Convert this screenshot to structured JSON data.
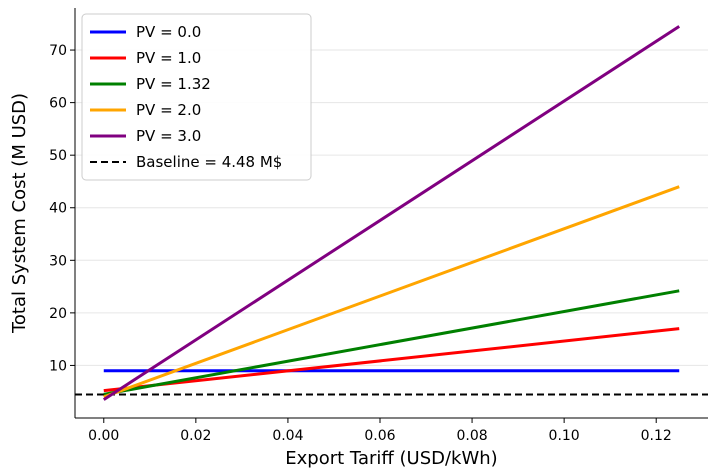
{
  "chart_data": {
    "type": "line",
    "title": "",
    "xlabel": "Export Tariff (USD/kWh)",
    "ylabel": "Total System Cost (M USD)",
    "xlim": [
      -0.00625,
      0.13125
    ],
    "ylim": [
      0.0,
      78.0
    ],
    "xticks": [
      0.0,
      0.02,
      0.04,
      0.06,
      0.08,
      0.1,
      0.12
    ],
    "xtick_labels": [
      "0.00",
      "0.02",
      "0.04",
      "0.06",
      "0.08",
      "0.10",
      "0.12"
    ],
    "yticks": [
      10,
      20,
      30,
      40,
      50,
      60,
      70
    ],
    "ytick_labels": [
      "10",
      "20",
      "30",
      "40",
      "50",
      "60",
      "70"
    ],
    "grid": "horizontal",
    "legend_position": "top-left",
    "series": [
      {
        "name": "PV = 0.0",
        "color": "#0000ff",
        "dash": "solid",
        "x": [
          0.0,
          0.125
        ],
        "y": [
          9.0,
          9.0
        ]
      },
      {
        "name": "PV = 1.0",
        "color": "#ff0000",
        "dash": "solid",
        "x": [
          0.0,
          0.125
        ],
        "y": [
          5.2,
          17.0
        ]
      },
      {
        "name": "PV = 1.32",
        "color": "#008000",
        "dash": "solid",
        "x": [
          0.0,
          0.125
        ],
        "y": [
          4.5,
          24.2
        ]
      },
      {
        "name": "PV = 2.0",
        "color": "#ffa500",
        "dash": "solid",
        "x": [
          0.0,
          0.125
        ],
        "y": [
          4.0,
          44.0
        ]
      },
      {
        "name": "PV = 3.0",
        "color": "#800080",
        "dash": "solid",
        "x": [
          0.0,
          0.125
        ],
        "y": [
          3.5,
          74.5
        ]
      },
      {
        "name": "Baseline = 4.48 M$",
        "color": "#000000",
        "dash": "dashed",
        "x": [
          -0.00625,
          0.13125
        ],
        "y": [
          4.48,
          4.48
        ]
      }
    ]
  }
}
